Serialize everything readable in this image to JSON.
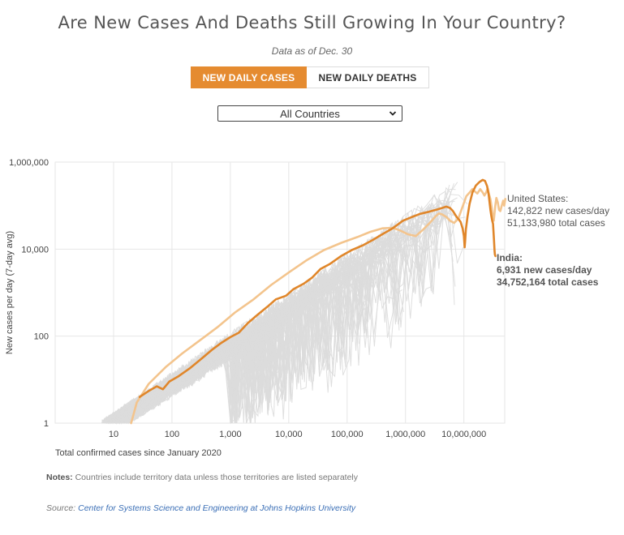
{
  "header": {
    "title": "Are New Cases And Deaths Still Growing In Your Country?",
    "subtitle": "Data as of Dec. 30"
  },
  "toggle": {
    "cases_label": "NEW DAILY CASES",
    "deaths_label": "NEW DAILY DEATHS"
  },
  "country_select": {
    "value": "All Countries"
  },
  "colors": {
    "accent": "#e58b30",
    "us_line": "#f3c48d",
    "india_line": "#e0862a",
    "background_lines": "#dcdcdc",
    "gridline": "#e6e6e6"
  },
  "chart_data": {
    "type": "line",
    "scale": "log-log",
    "xlabel": "Total confirmed cases since January 2020",
    "ylabel": "New cases per day (7-day avg)",
    "xlim": [
      1,
      50000000
    ],
    "ylim": [
      1,
      1000000
    ],
    "x_ticks": [
      {
        "value": 10,
        "label": "10"
      },
      {
        "value": 100,
        "label": "100"
      },
      {
        "value": 1000,
        "label": "1,000"
      },
      {
        "value": 10000,
        "label": "10,000"
      },
      {
        "value": 100000,
        "label": "100,000"
      },
      {
        "value": 1000000,
        "label": "1,000,000"
      },
      {
        "value": 10000000,
        "label": "10,000,000"
      }
    ],
    "y_ticks": [
      {
        "value": 1,
        "label": "1"
      },
      {
        "value": 100,
        "label": "100"
      },
      {
        "value": 10000,
        "label": "10,000"
      },
      {
        "value": 1000000,
        "label": "1,000,000"
      }
    ],
    "series": [
      {
        "name": "United States",
        "color": "#f3c48d",
        "points": [
          [
            20,
            1
          ],
          [
            25,
            3
          ],
          [
            40,
            8
          ],
          [
            80,
            20
          ],
          [
            150,
            40
          ],
          [
            300,
            80
          ],
          [
            600,
            160
          ],
          [
            1200,
            350
          ],
          [
            2500,
            700
          ],
          [
            5000,
            1500
          ],
          [
            10000,
            2900
          ],
          [
            20000,
            5500
          ],
          [
            40000,
            9500
          ],
          [
            80000,
            14000
          ],
          [
            150000,
            19000
          ],
          [
            250000,
            25000
          ],
          [
            400000,
            30000
          ],
          [
            600000,
            31000
          ],
          [
            800000,
            27000
          ],
          [
            1100000,
            22000
          ],
          [
            1500000,
            20000
          ],
          [
            2000000,
            28000
          ],
          [
            2600000,
            40000
          ],
          [
            3200000,
            55000
          ],
          [
            3700000,
            66000
          ],
          [
            4200000,
            63000
          ],
          [
            5000000,
            55000
          ],
          [
            5800000,
            45000
          ],
          [
            6800000,
            40000
          ],
          [
            8000000,
            50000
          ],
          [
            9500000,
            95000
          ],
          [
            11000000,
            165000
          ],
          [
            12500000,
            200000
          ],
          [
            14000000,
            240000
          ],
          [
            15500000,
            210000
          ],
          [
            17000000,
            190000
          ],
          [
            19000000,
            240000
          ],
          [
            21000000,
            200000
          ],
          [
            22500000,
            170000
          ],
          [
            24000000,
            200000
          ],
          [
            25500000,
            250000
          ],
          [
            27000000,
            180000
          ],
          [
            28500000,
            140000
          ],
          [
            30000000,
            90000
          ],
          [
            31000000,
            60000
          ],
          [
            32500000,
            45000
          ],
          [
            34500000,
            100000
          ],
          [
            36000000,
            150000
          ],
          [
            38000000,
            120000
          ],
          [
            40000000,
            80000
          ],
          [
            42000000,
            75000
          ],
          [
            44000000,
            95000
          ],
          [
            47000000,
            130000
          ],
          [
            49000000,
            100000
          ],
          [
            51133980,
            142822
          ]
        ],
        "annotation_name": "United States:",
        "annotation_cases_per_day": "142,822 new cases/day",
        "annotation_total": "51,133,980 total cases"
      },
      {
        "name": "India",
        "color": "#e0862a",
        "points": [
          [
            28,
            4
          ],
          [
            40,
            5.5
          ],
          [
            55,
            7
          ],
          [
            70,
            6
          ],
          [
            90,
            9
          ],
          [
            130,
            12
          ],
          [
            200,
            18
          ],
          [
            300,
            28
          ],
          [
            500,
            50
          ],
          [
            700,
            70
          ],
          [
            1000,
            95
          ],
          [
            1400,
            120
          ],
          [
            2000,
            200
          ],
          [
            3000,
            320
          ],
          [
            4500,
            500
          ],
          [
            6000,
            700
          ],
          [
            9000,
            850
          ],
          [
            12000,
            1200
          ],
          [
            18000,
            1600
          ],
          [
            25000,
            2200
          ],
          [
            35000,
            3500
          ],
          [
            50000,
            4500
          ],
          [
            80000,
            7000
          ],
          [
            120000,
            9500
          ],
          [
            180000,
            12000
          ],
          [
            270000,
            16000
          ],
          [
            400000,
            22000
          ],
          [
            600000,
            30000
          ],
          [
            900000,
            45000
          ],
          [
            1300000,
            55000
          ],
          [
            1800000,
            65000
          ],
          [
            2500000,
            72000
          ],
          [
            3300000,
            80000
          ],
          [
            4200000,
            88000
          ],
          [
            5000000,
            95000
          ],
          [
            5800000,
            88000
          ],
          [
            6500000,
            75000
          ],
          [
            7500000,
            55000
          ],
          [
            8200000,
            48000
          ],
          [
            8800000,
            42000
          ],
          [
            9500000,
            30000
          ],
          [
            10000000,
            20000
          ],
          [
            10300000,
            11000
          ],
          [
            10500000,
            15000
          ],
          [
            10800000,
            28000
          ],
          [
            11500000,
            55000
          ],
          [
            12500000,
            110000
          ],
          [
            14000000,
            200000
          ],
          [
            16000000,
            290000
          ],
          [
            18500000,
            350000
          ],
          [
            21000000,
            390000
          ],
          [
            23000000,
            370000
          ],
          [
            25000000,
            280000
          ],
          [
            26500000,
            180000
          ],
          [
            27500000,
            120000
          ],
          [
            28500000,
            80000
          ],
          [
            29500000,
            58000
          ],
          [
            30500000,
            45000
          ],
          [
            31500000,
            38000
          ],
          [
            32500000,
            20000
          ],
          [
            33500000,
            9000
          ],
          [
            34000000,
            7500
          ],
          [
            34752164,
            6931
          ]
        ],
        "annotation_name": "India:",
        "annotation_cases_per_day": "6,931 new cases/day",
        "annotation_total": "34,752,164 total cases"
      }
    ]
  },
  "notes": {
    "label": "Notes:",
    "text": "Countries include territory data unless those territories are listed separately"
  },
  "source": {
    "label": "Source:",
    "link_text": "Center for Systems Science and Engineering at Johns Hopkins University"
  }
}
